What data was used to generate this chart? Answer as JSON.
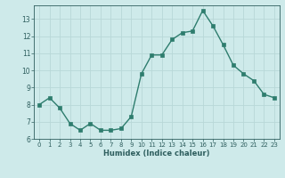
{
  "x": [
    0,
    1,
    2,
    3,
    4,
    5,
    6,
    7,
    8,
    9,
    10,
    11,
    12,
    13,
    14,
    15,
    16,
    17,
    18,
    19,
    20,
    21,
    22,
    23
  ],
  "y": [
    8.0,
    8.4,
    7.8,
    6.9,
    6.5,
    6.9,
    6.5,
    6.5,
    6.6,
    7.3,
    9.8,
    10.9,
    10.9,
    11.8,
    12.2,
    12.3,
    13.5,
    12.6,
    11.5,
    10.3,
    9.8,
    9.4,
    8.6,
    8.4
  ],
  "line_color": "#2e7d6e",
  "marker_color": "#2e7d6e",
  "bg_color": "#ceeaea",
  "grid_major_color": "#b8d8d8",
  "grid_minor_color": "#d4ecec",
  "text_color": "#2e5e5e",
  "xlabel": "Humidex (Indice chaleur)",
  "ylim": [
    6,
    13.8
  ],
  "xlim": [
    -0.5,
    23.5
  ],
  "yticks": [
    6,
    7,
    8,
    9,
    10,
    11,
    12,
    13
  ],
  "xticks": [
    0,
    1,
    2,
    3,
    4,
    5,
    6,
    7,
    8,
    9,
    10,
    11,
    12,
    13,
    14,
    15,
    16,
    17,
    18,
    19,
    20,
    21,
    22,
    23
  ],
  "fig_width": 3.2,
  "fig_height": 2.0,
  "dpi": 100
}
